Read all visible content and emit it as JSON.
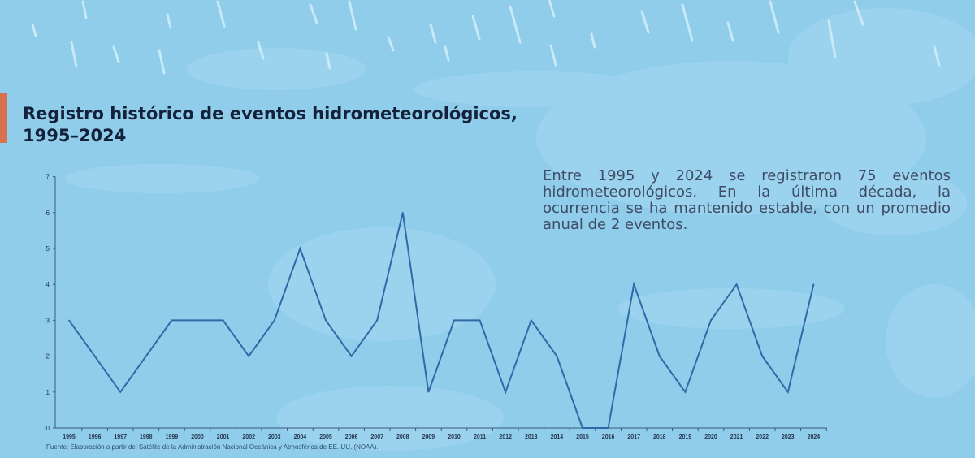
{
  "header": {
    "title_line1": "Registro histórico de eventos hidrometeorológicos,",
    "title_line2": "1995–2024",
    "accent_color": "#d9704f"
  },
  "description": "Entre 1995 y 2024 se registraron 75 eventos hidrometeorológicos. En la última década, la ocurrencia se ha mantenido estable, con un promedio anual de 2 eventos.",
  "source": "Fuente: Elaboración a partir del Satélite de la Administración Nacional Oceánica y Atmosférica de EE. UU. (NOAA).",
  "chart_data": {
    "type": "line",
    "categories": [
      "1995",
      "1996",
      "1997",
      "1998",
      "1999",
      "2000",
      "2001",
      "2002",
      "2003",
      "2004",
      "2005",
      "2006",
      "2007",
      "2008",
      "2009",
      "2010",
      "2011",
      "2012",
      "2013",
      "2014",
      "2015",
      "2016",
      "2017",
      "2018",
      "2019",
      "2020",
      "2021",
      "2022",
      "2023",
      "2024"
    ],
    "series": [
      {
        "values": [
          3,
          2,
          1,
          2,
          3,
          3,
          3,
          2,
          3,
          5,
          3,
          2,
          3,
          6,
          1,
          3,
          3,
          1,
          3,
          2,
          0,
          0,
          4,
          2,
          1,
          3,
          4,
          2,
          1,
          4
        ]
      }
    ],
    "ylim": [
      0,
      7
    ],
    "yticks": [
      0,
      1,
      2,
      3,
      4,
      5,
      6,
      7
    ],
    "grid": false,
    "line_color": "#2f6aa8",
    "axis_color": "#3a5a7c"
  }
}
